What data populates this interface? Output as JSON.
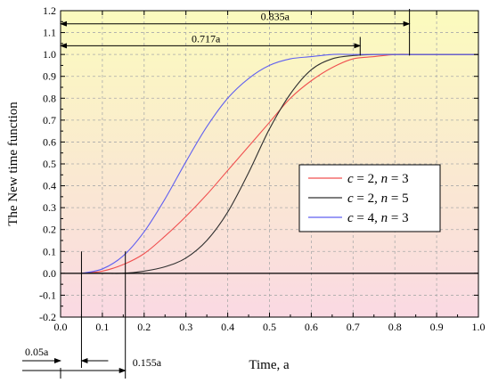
{
  "chart_data": {
    "type": "line",
    "title": "",
    "xlabel": "Time, a",
    "ylabel": "The New time function",
    "xlim": [
      0.0,
      1.0
    ],
    "ylim": [
      -0.2,
      1.2
    ],
    "xticks": [
      "0.0",
      "0.1",
      "0.2",
      "0.3",
      "0.4",
      "0.5",
      "0.6",
      "0.7",
      "0.8",
      "0.9",
      "1.0"
    ],
    "yticks": [
      "-0.2",
      "-0.1",
      "0.0",
      "0.1",
      "0.2",
      "0.3",
      "0.4",
      "0.5",
      "0.6",
      "0.7",
      "0.8",
      "0.9",
      "1.0",
      "1.1",
      "1.2"
    ],
    "grid": true,
    "background_gradient": [
      "#fbfbbd",
      "#fad9e3"
    ],
    "legend_position": "right",
    "series": [
      {
        "name": "c = 2,  n = 3",
        "label_c": "c",
        "label_c_value": " = 2,  ",
        "label_n": "n",
        "label_n_value": " = 3",
        "color": "#f05050",
        "x": [
          0.05,
          0.1,
          0.15,
          0.2,
          0.25,
          0.3,
          0.35,
          0.4,
          0.45,
          0.5,
          0.55,
          0.6,
          0.65,
          0.7,
          0.75,
          0.8,
          0.85,
          0.9,
          1.0
        ],
        "y": [
          0.0,
          0.01,
          0.04,
          0.09,
          0.17,
          0.26,
          0.36,
          0.47,
          0.58,
          0.69,
          0.8,
          0.88,
          0.94,
          0.98,
          0.99,
          1.0,
          1.0,
          1.0,
          1.0
        ]
      },
      {
        "name": "c = 2,  n = 5",
        "label_c": "c",
        "label_c_value": " = 2,  ",
        "label_n": "n",
        "label_n_value": " = 5",
        "color": "#303030",
        "x": [
          0.05,
          0.1,
          0.15,
          0.2,
          0.25,
          0.3,
          0.35,
          0.4,
          0.45,
          0.5,
          0.55,
          0.6,
          0.65,
          0.7,
          0.75,
          0.8,
          0.85,
          0.9,
          1.0
        ],
        "y": [
          0.0,
          0.0,
          0.0,
          0.01,
          0.03,
          0.07,
          0.15,
          0.28,
          0.46,
          0.66,
          0.82,
          0.93,
          0.98,
          0.995,
          1.0,
          1.0,
          1.0,
          1.0,
          1.0
        ]
      },
      {
        "name": "c = 4,  n = 3",
        "label_c": "c",
        "label_c_value": " = 4,  ",
        "label_n": "n",
        "label_n_value": " = 3",
        "color": "#6060f0",
        "x": [
          0.05,
          0.1,
          0.15,
          0.2,
          0.25,
          0.3,
          0.35,
          0.4,
          0.45,
          0.5,
          0.55,
          0.6,
          0.65,
          0.7,
          0.75,
          0.8,
          0.9,
          1.0
        ],
        "y": [
          0.0,
          0.02,
          0.08,
          0.19,
          0.34,
          0.51,
          0.67,
          0.8,
          0.89,
          0.95,
          0.98,
          0.99,
          1.0,
          1.0,
          1.0,
          1.0,
          1.0,
          1.0
        ]
      }
    ],
    "annotations": [
      {
        "text": "0.835a",
        "from": 0.0,
        "to": 0.835,
        "y": 1.14
      },
      {
        "text": "0.717a",
        "from": 0.0,
        "to": 0.717,
        "y": 1.04
      },
      {
        "text": "0.05a",
        "value": 0.05
      },
      {
        "text": "0.155a",
        "value": 0.155
      }
    ]
  }
}
